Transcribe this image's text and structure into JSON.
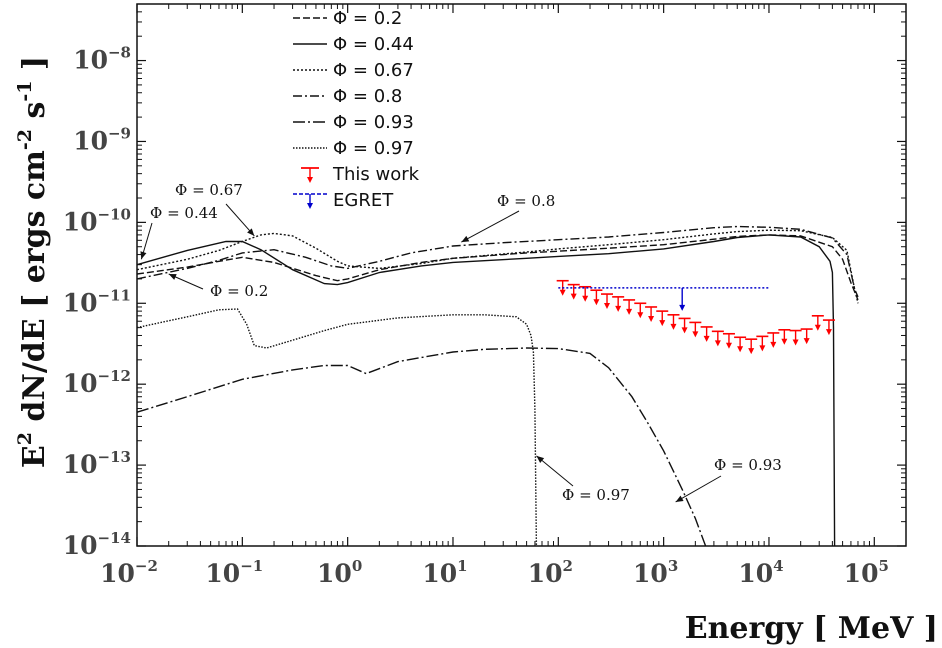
{
  "chart_data": {
    "type": "line",
    "xlabel": "Energy [ MeV ]",
    "ylabel": {
      "base": "E",
      "sup1": "2",
      "mid": " dN/dE [ ergs cm",
      "sup2": "-2",
      "s": " s",
      "sup3": "-1",
      "end": "]"
    },
    "xscale": "log",
    "yscale": "log",
    "xlim": [
      0.01,
      200000
    ],
    "ylim": [
      1e-14,
      5e-08
    ],
    "x_ticks": [
      {
        "base": "10",
        "exp": "−2",
        "value": 0.01
      },
      {
        "base": "10",
        "exp": "−1",
        "value": 0.1
      },
      {
        "base": "10",
        "exp": "0",
        "value": 1
      },
      {
        "base": "10",
        "exp": "1",
        "value": 10
      },
      {
        "base": "10",
        "exp": "2",
        "value": 100
      },
      {
        "base": "10",
        "exp": "3",
        "value": 1000
      },
      {
        "base": "10",
        "exp": "4",
        "value": 10000
      },
      {
        "base": "10",
        "exp": "5",
        "value": 100000
      }
    ],
    "y_ticks": [
      {
        "base": "10",
        "exp": "−14",
        "value": 1e-14
      },
      {
        "base": "10",
        "exp": "−13",
        "value": 1e-13
      },
      {
        "base": "10",
        "exp": "−12",
        "value": 1e-12
      },
      {
        "base": "10",
        "exp": "−11",
        "value": 1e-11
      },
      {
        "base": "10",
        "exp": "−10",
        "value": 1e-10
      },
      {
        "base": "10",
        "exp": "−9",
        "value": 1e-09
      },
      {
        "base": "10",
        "exp": "−8",
        "value": 1e-08
      }
    ],
    "legend_position": "top-center",
    "series": [
      {
        "name": "Φ = 0.2",
        "style": "dashed",
        "color": "#111111",
        "x": [
          0.01,
          0.03,
          0.06,
          0.1,
          0.2,
          0.5,
          0.8,
          1.0,
          2,
          5,
          10,
          50,
          100,
          300,
          1000,
          3000,
          5000,
          10000,
          20000,
          40000,
          50000,
          60000,
          70000
        ],
        "y": [
          2.3e-11,
          2.8e-11,
          3.3e-11,
          3.7e-11,
          3.2e-11,
          2.2e-11,
          1.9e-11,
          2e-11,
          2.6e-11,
          3.2e-11,
          3.6e-11,
          4.2e-11,
          4.4e-11,
          4.8e-11,
          5.3e-11,
          6.2e-11,
          6.7e-11,
          7e-11,
          6.8e-11,
          5e-11,
          3.5e-11,
          1.8e-11,
          1.1e-11
        ]
      },
      {
        "name": "Φ = 0.44",
        "style": "solid",
        "color": "#111111",
        "x": [
          0.01,
          0.03,
          0.07,
          0.1,
          0.15,
          0.3,
          0.6,
          0.8,
          1.0,
          2,
          5,
          10,
          50,
          100,
          300,
          1000,
          3000,
          5000,
          10000,
          20000,
          30000,
          38000,
          40000,
          41000,
          42000
        ],
        "y": [
          3e-11,
          4.5e-11,
          5.8e-11,
          5.8e-11,
          4.6e-11,
          2.6e-11,
          1.75e-11,
          1.7e-11,
          1.8e-11,
          2.4e-11,
          2.9e-11,
          3.2e-11,
          3.6e-11,
          3.8e-11,
          4.1e-11,
          4.7e-11,
          5.8e-11,
          6.5e-11,
          7e-11,
          6.6e-11,
          5e-11,
          3.3e-11,
          2.4e-11,
          5e-12,
          1e-14
        ]
      },
      {
        "name": "Φ = 0.67",
        "style": "dotted",
        "color": "#111111",
        "x": [
          0.01,
          0.03,
          0.06,
          0.1,
          0.15,
          0.2,
          0.3,
          0.5,
          0.8,
          1.0,
          2,
          5,
          10,
          50,
          100,
          300,
          1000,
          3000,
          5000,
          10000,
          20000,
          40000,
          55000,
          65000,
          70000
        ],
        "y": [
          2.6e-11,
          3.5e-11,
          4.5e-11,
          5.8e-11,
          7e-11,
          7.3e-11,
          6.8e-11,
          4.8e-11,
          3.3e-11,
          2.9e-11,
          2.7e-11,
          3.1e-11,
          3.6e-11,
          4.3e-11,
          4.7e-11,
          5.3e-11,
          6.1e-11,
          7.2e-11,
          7.7e-11,
          8e-11,
          7.9e-11,
          6.5e-11,
          4.5e-11,
          1.5e-11,
          1e-11
        ]
      },
      {
        "name": "Φ = 0.8",
        "style": "dashdot",
        "color": "#111111",
        "x": [
          0.01,
          0.03,
          0.06,
          0.1,
          0.2,
          0.4,
          0.7,
          1.0,
          2,
          4,
          10,
          30,
          100,
          300,
          1000,
          3000,
          5000,
          10000,
          20000,
          40000,
          55000,
          65000,
          70000
        ],
        "y": [
          2e-11,
          2.7e-11,
          3.4e-11,
          4.2e-11,
          4.6e-11,
          3.7e-11,
          2.9e-11,
          2.7e-11,
          3.3e-11,
          4.2e-11,
          5.1e-11,
          5.6e-11,
          6.1e-11,
          6.6e-11,
          7.5e-11,
          8.6e-11,
          8.9e-11,
          8.7e-11,
          8.2e-11,
          6.4e-11,
          4e-11,
          1.5e-11,
          1.2e-11
        ]
      },
      {
        "name": "Φ = 0.93",
        "style": "dashdot-long",
        "color": "#111111",
        "x": [
          0.01,
          0.03,
          0.1,
          0.3,
          0.6,
          1.0,
          1.5,
          3,
          10,
          20,
          50,
          100,
          200,
          300,
          500,
          700,
          1000,
          1500,
          2000,
          2500
        ],
        "y": [
          4.5e-13,
          7e-13,
          1.15e-12,
          1.5e-12,
          1.7e-12,
          1.7e-12,
          1.35e-12,
          1.9e-12,
          2.5e-12,
          2.7e-12,
          2.8e-12,
          2.75e-12,
          2.4e-12,
          1.6e-12,
          7e-13,
          3.4e-13,
          1.5e-13,
          5e-14,
          2.2e-14,
          1e-14
        ]
      },
      {
        "name": "Φ = 0.97",
        "style": "dotted-fine",
        "color": "#111111",
        "x": [
          0.01,
          0.03,
          0.06,
          0.09,
          0.11,
          0.13,
          0.17,
          0.3,
          0.6,
          1.0,
          3,
          10,
          20,
          40,
          50,
          55,
          58,
          60,
          62
        ],
        "y": [
          5e-12,
          6.8e-12,
          8.3e-12,
          8.5e-12,
          5.5e-12,
          3e-12,
          2.8e-12,
          3.5e-12,
          4.6e-12,
          5.5e-12,
          6.6e-12,
          7.2e-12,
          7.2e-12,
          6.8e-12,
          5.5e-12,
          4e-12,
          2.5e-12,
          5e-13,
          1e-14
        ]
      }
    ],
    "upper_limits": [
      {
        "name": "This work",
        "color": "#ff0000",
        "x": [
          110,
          140,
          180,
          230,
          290,
          370,
          470,
          600,
          760,
          970,
          1240,
          1580,
          2000,
          2560,
          3270,
          4170,
          5320,
          6780,
          8650,
          11000,
          14000,
          17900,
          22800,
          29100,
          37100
        ],
        "y": [
          1.9e-11,
          1.7e-11,
          1.6e-11,
          1.45e-11,
          1.3e-11,
          1.2e-11,
          1.1e-11,
          1e-11,
          9e-12,
          8e-12,
          7.2e-12,
          6.5e-12,
          5.8e-12,
          5.1e-12,
          4.5e-12,
          4.2e-12,
          3.8e-12,
          3.6e-12,
          3.9e-12,
          4.3e-12,
          4.7e-12,
          4.6e-12,
          4.8e-12,
          7e-12,
          6.2e-12
        ]
      },
      {
        "name": "EGRET",
        "color": "#0000cc",
        "x_start": 100,
        "x_end": 10000,
        "y": 1.55e-11,
        "arrow_x": 1500
      }
    ],
    "annotations": [
      {
        "text": "Φ = 0.67",
        "target_x": 0.13,
        "target_y": 6.8e-11
      },
      {
        "text": "Φ = 0.44",
        "target_x": 0.011,
        "target_y": 3.5e-11
      },
      {
        "text": "Φ = 0.2",
        "target_x": 0.02,
        "target_y": 2.3e-11
      },
      {
        "text": "Φ = 0.8",
        "target_x": 12,
        "target_y": 5.7e-11
      },
      {
        "text": "Φ = 0.97",
        "target_x": 62,
        "target_y": 1.3e-13
      },
      {
        "text": "Φ = 0.93",
        "target_x": 1300,
        "target_y": 3.5e-14
      }
    ]
  }
}
